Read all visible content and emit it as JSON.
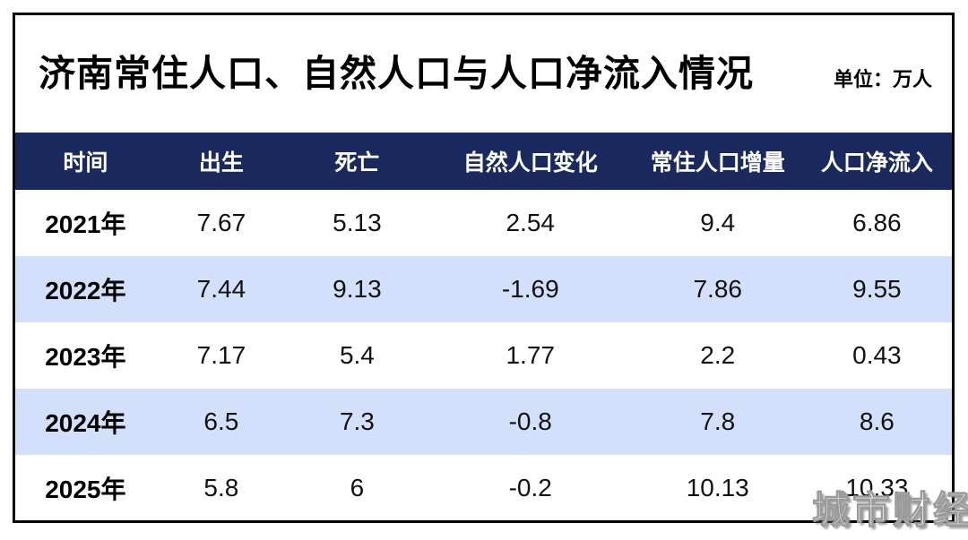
{
  "header": {
    "title": "济南常住人口、自然人口与人口净流入情况",
    "unit_label": "单位：万人"
  },
  "table": {
    "columns": [
      "时间",
      "出生",
      "死亡",
      "自然人口变化",
      "常住人口增量",
      "人口净流入"
    ],
    "rows": [
      {
        "year": "2021年",
        "values": [
          "7.67",
          "5.13",
          "2.54",
          "9.4",
          "6.86"
        ]
      },
      {
        "year": "2022年",
        "values": [
          "7.44",
          "9.13",
          "-1.69",
          "7.86",
          "9.55"
        ]
      },
      {
        "year": "2023年",
        "values": [
          "7.17",
          "5.4",
          "1.77",
          "2.2",
          "0.43"
        ]
      },
      {
        "year": "2024年",
        "values": [
          "6.5",
          "7.3",
          "-0.8",
          "7.8",
          "8.6"
        ]
      },
      {
        "year": "2025年",
        "values": [
          "5.8",
          "6",
          "-0.2",
          "10.13",
          "10.33"
        ]
      }
    ]
  },
  "watermark": {
    "text": "城市财经"
  },
  "colors": {
    "header_bg": "#1a2a5e",
    "header_text": "#ffffff",
    "row_alt_bg": "#d3e0fb",
    "border": "#000000"
  },
  "chart_data": {
    "type": "table",
    "title": "济南常住人口、自然人口与人口净流入情况",
    "unit": "万人",
    "columns": [
      "时间",
      "出生",
      "死亡",
      "自然人口变化",
      "常住人口增量",
      "人口净流入"
    ],
    "rows": [
      [
        "2021年",
        7.67,
        5.13,
        2.54,
        9.4,
        6.86
      ],
      [
        "2022年",
        7.44,
        9.13,
        -1.69,
        7.86,
        9.55
      ],
      [
        "2023年",
        7.17,
        5.4,
        1.77,
        2.2,
        0.43
      ],
      [
        "2024年",
        6.5,
        7.3,
        -0.8,
        7.8,
        8.6
      ],
      [
        "2025年",
        5.8,
        6,
        -0.2,
        10.13,
        10.33
      ]
    ]
  }
}
